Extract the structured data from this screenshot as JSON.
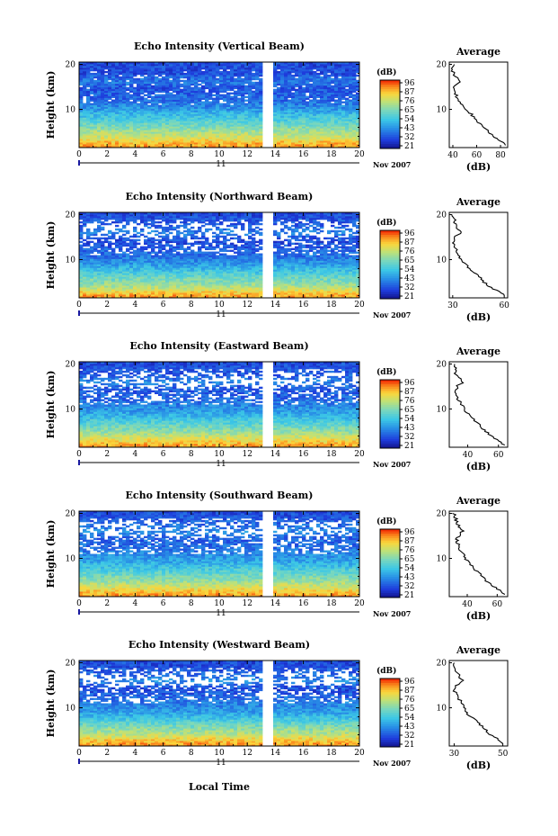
{
  "figure": {
    "x_axis_label": "Local Time",
    "month_label": "Nov 2007",
    "day_label": "11",
    "y_axis_label": "Height (km)",
    "colorbar_unit": "(dB)",
    "colorbar_ticks": [
      "96",
      "87",
      "76",
      "65",
      "54",
      "43",
      "32",
      "21"
    ],
    "average_title": "Average",
    "average_xlabel": "(dB)",
    "x_ticks": [
      "0",
      "2",
      "4",
      "6",
      "8",
      "10",
      "12",
      "14",
      "16",
      "18",
      "20"
    ],
    "y_ticks": [
      "20",
      "10"
    ],
    "colors": {
      "scale_low": "#1a1aa0",
      "scale_mid": "#30c8d8",
      "scale_high": "#ff2000",
      "gap": "#ffffff",
      "frame": "#000000"
    }
  },
  "chart_data": [
    {
      "type": "heatmap",
      "title": "Echo Intensity (Vertical Beam)",
      "xlabel": "",
      "ylabel": "Height (km)",
      "xlim": [
        0,
        20
      ],
      "ylim": [
        1.5,
        20.5
      ],
      "color_range_db": [
        21,
        96
      ],
      "data_gap_hours": [
        13.2,
        13.8
      ],
      "average_profile": {
        "title": "Average",
        "xlabel": "(dB)",
        "xlim": [
          37,
          86
        ],
        "x_ticks": [
          "40",
          "60",
          "80"
        ],
        "height_km": [
          2,
          3,
          4,
          5,
          6,
          7,
          8,
          9,
          10,
          11,
          12,
          13,
          14,
          15,
          16,
          17,
          18,
          19,
          20
        ],
        "db": [
          84,
          80,
          74,
          70,
          66,
          62,
          58,
          55,
          50,
          47,
          44,
          43,
          42,
          41,
          45,
          44,
          40,
          40,
          40
        ]
      }
    },
    {
      "type": "heatmap",
      "title": "Echo Intensity (Northward Beam)",
      "xlabel": "",
      "ylabel": "Height (km)",
      "xlim": [
        0,
        20
      ],
      "ylim": [
        1.5,
        20.5
      ],
      "color_range_db": [
        21,
        96
      ],
      "data_gap_hours": [
        13.2,
        13.8
      ],
      "average_profile": {
        "title": "Average",
        "xlabel": "(dB)",
        "xlim": [
          28,
          62
        ],
        "x_ticks": [
          "30",
          "60"
        ],
        "height_km": [
          2,
          3,
          4,
          5,
          6,
          7,
          8,
          9,
          10,
          11,
          12,
          13,
          14,
          15,
          16,
          17,
          18,
          19,
          20
        ],
        "db": [
          60,
          56,
          51,
          48,
          46,
          43,
          40,
          37,
          35,
          33,
          32,
          31,
          30,
          31,
          35,
          33,
          31,
          31,
          30
        ]
      }
    },
    {
      "type": "heatmap",
      "title": "Echo Intensity (Eastward Beam)",
      "xlabel": "",
      "ylabel": "Height (km)",
      "xlim": [
        0,
        20
      ],
      "ylim": [
        1.5,
        20.5
      ],
      "color_range_db": [
        21,
        96
      ],
      "data_gap_hours": [
        13.2,
        13.8
      ],
      "average_profile": {
        "title": "Average",
        "xlabel": "(dB)",
        "xlim": [
          28,
          66
        ],
        "x_ticks": [
          "40",
          "60"
        ],
        "height_km": [
          2,
          3,
          4,
          5,
          6,
          7,
          8,
          9,
          10,
          11,
          12,
          13,
          14,
          15,
          16,
          17,
          18,
          19,
          20
        ],
        "db": [
          64,
          60,
          56,
          52,
          49,
          46,
          43,
          40,
          38,
          36,
          34,
          33,
          32,
          33,
          37,
          34,
          32,
          32,
          31
        ]
      }
    },
    {
      "type": "heatmap",
      "title": "Echo Intensity (Southward Beam)",
      "xlabel": "",
      "ylabel": "Height (km)",
      "xlim": [
        0,
        20
      ],
      "ylim": [
        1.5,
        20.5
      ],
      "color_range_db": [
        21,
        96
      ],
      "data_gap_hours": [
        13.2,
        13.8
      ],
      "average_profile": {
        "title": "Average",
        "xlabel": "(dB)",
        "xlim": [
          28,
          67
        ],
        "x_ticks": [
          "40",
          "60"
        ],
        "height_km": [
          2,
          3,
          4,
          5,
          6,
          7,
          8,
          9,
          10,
          11,
          12,
          13,
          14,
          15,
          16,
          17,
          18,
          19,
          20
        ],
        "db": [
          65,
          61,
          57,
          53,
          50,
          47,
          44,
          41,
          39,
          37,
          35,
          34,
          33,
          34,
          37,
          35,
          33,
          32,
          31
        ]
      }
    },
    {
      "type": "heatmap",
      "title": "Echo Intensity (Westward Beam)",
      "xlabel": "",
      "ylabel": "Height (km)",
      "xlim": [
        0,
        20
      ],
      "ylim": [
        1.5,
        20.5
      ],
      "color_range_db": [
        21,
        96
      ],
      "data_gap_hours": [
        13.2,
        13.8
      ],
      "average_profile": {
        "title": "Average",
        "xlabel": "(dB)",
        "xlim": [
          28,
          52
        ],
        "x_ticks": [
          "30",
          "50"
        ],
        "height_km": [
          2,
          3,
          4,
          5,
          6,
          7,
          8,
          9,
          10,
          11,
          12,
          13,
          14,
          15,
          16,
          17,
          18,
          19,
          20
        ],
        "db": [
          50,
          48,
          45,
          43,
          41,
          39,
          37,
          35,
          34,
          33,
          32,
          31,
          30,
          31,
          34,
          32,
          31,
          30,
          30
        ]
      }
    }
  ]
}
